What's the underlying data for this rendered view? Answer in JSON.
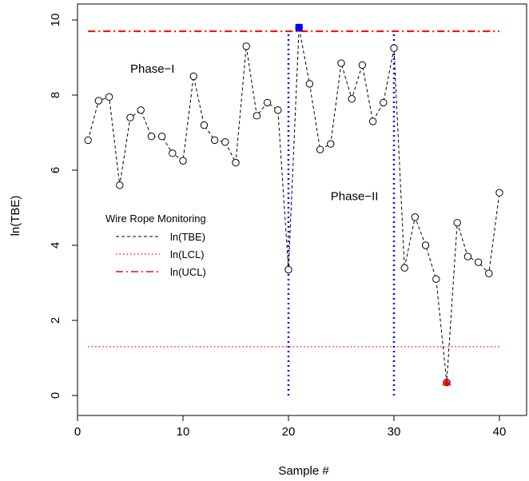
{
  "chart_data": {
    "type": "line",
    "xlabel": "Sample #",
    "ylabel": "ln(TBE)",
    "xlim": [
      0,
      41
    ],
    "ylim": [
      0,
      10
    ],
    "x_ticks": [
      0,
      10,
      20,
      30,
      40
    ],
    "y_ticks": [
      0,
      2,
      4,
      6,
      8,
      10
    ],
    "ucl": 9.7,
    "lcl": 1.3,
    "ucl_x_range": [
      1,
      40
    ],
    "lcl_x_range": [
      1,
      40
    ],
    "phase_boundaries": [
      20,
      30
    ],
    "annotations": [
      {
        "text": "Phase−I",
        "x": 5,
        "y": 8.6
      },
      {
        "text": "Phase−II",
        "x": 24,
        "y": 5.2
      }
    ],
    "legend": {
      "title": "Wire Rope Monitoring",
      "entries": [
        "ln(TBE)",
        "ln(LCL)",
        "ln(UCL)"
      ],
      "position": "center-left"
    },
    "series": [
      {
        "name": "ln(TBE)",
        "x": [
          1,
          2,
          3,
          4,
          5,
          6,
          7,
          8,
          9,
          10,
          11,
          12,
          13,
          14,
          15,
          16,
          17,
          18,
          19,
          20,
          21,
          22,
          23,
          24,
          25,
          26,
          27,
          28,
          29,
          30,
          31,
          32,
          33,
          34,
          35,
          36,
          37,
          38,
          39,
          40
        ],
        "y": [
          6.8,
          7.85,
          7.95,
          5.6,
          7.4,
          7.6,
          6.9,
          6.9,
          6.45,
          6.25,
          8.5,
          7.2,
          6.8,
          6.75,
          6.2,
          9.3,
          7.45,
          7.8,
          7.6,
          3.35,
          9.8,
          8.3,
          6.55,
          6.7,
          8.85,
          7.9,
          8.8,
          7.3,
          7.8,
          9.25,
          3.4,
          4.75,
          4.0,
          3.1,
          0.35,
          4.6,
          3.7,
          3.55,
          3.25,
          5.4
        ]
      }
    ],
    "signals": [
      {
        "x": 21,
        "y": 9.8,
        "shape": "square",
        "color": "#0000ff"
      },
      {
        "x": 35,
        "y": 0.35,
        "shape": "triangle",
        "color": "#ff0000"
      }
    ],
    "colors": {
      "ucl": "#ff0000",
      "lcl": "#ff0000",
      "phase": "#0000ff",
      "series": "#000000"
    }
  }
}
